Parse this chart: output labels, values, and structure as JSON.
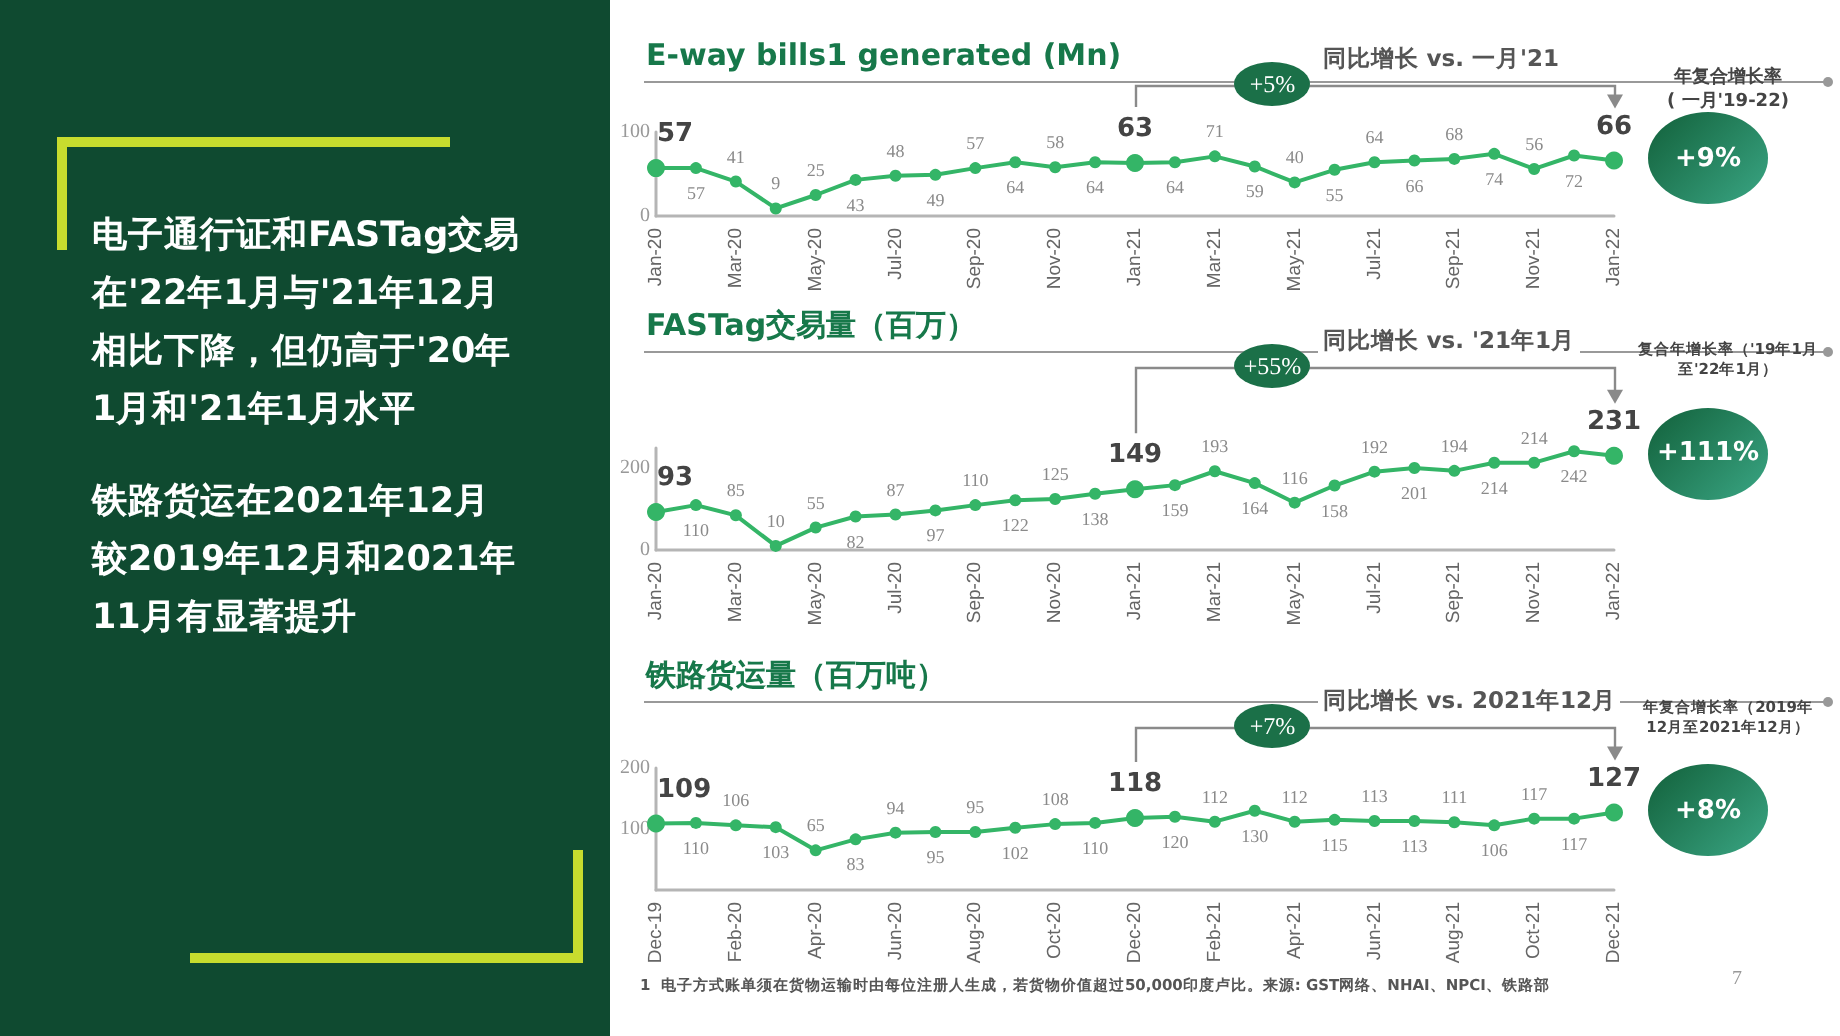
{
  "chart_data": [
    {
      "type": "other",
      "annotations": [
        "电子通行证和FASTag交易在'22年1月与'21年12月相比下降，但仍高于'20年1月和'21年1月水平",
        "铁路货运在2021年12月较2019年12月和2021年11月有显著提升"
      ]
    },
    {
      "type": "line",
      "title": "E-way bills1 generated (Mn)",
      "categories": [
        "Jan-20",
        null,
        "Mar-20",
        null,
        "May-20",
        null,
        "Jul-20",
        null,
        "Sep-20",
        null,
        "Nov-20",
        null,
        "Jan-21",
        null,
        "Mar-21",
        null,
        "May-21",
        null,
        "Jul-21",
        null,
        "Sep-21",
        null,
        "Nov-21",
        null,
        "Jan-22"
      ],
      "series": [
        {
          "color": "#34b567",
          "values": [
            57,
            57,
            41,
            9,
            25,
            43,
            48,
            49,
            57,
            64,
            58,
            64,
            63,
            64,
            71,
            59,
            40,
            55,
            64,
            66,
            68,
            74,
            56,
            72,
            66
          ]
        }
      ],
      "ylim": [
        0,
        100
      ],
      "yticks": [
        0,
        100
      ],
      "grid": false,
      "marker": "circle",
      "line_style": "solid",
      "data_labels": true,
      "annotations": [
        "+5%",
        "同比增长 vs. 一月'21",
        "年复合增长率\n( 一月'19-22)",
        "+9%"
      ]
    },
    {
      "type": "line",
      "title": "FASTag交易量（百万）",
      "categories": [
        "Jan-20",
        null,
        "Mar-20",
        null,
        "May-20",
        null,
        "Jul-20",
        null,
        "Sep-20",
        null,
        "Nov-20",
        null,
        "Jan-21",
        null,
        "Mar-21",
        null,
        "May-21",
        null,
        "Jul-21",
        null,
        "Sep-21",
        null,
        "Nov-21",
        null,
        "Jan-22"
      ],
      "series": [
        {
          "color": "#34b567",
          "values": [
            93,
            110,
            85,
            10,
            55,
            82,
            87,
            97,
            110,
            122,
            125,
            138,
            149,
            159,
            193,
            164,
            116,
            158,
            192,
            201,
            194,
            214,
            214,
            242,
            231
          ]
        }
      ],
      "ylim": [
        0,
        250
      ],
      "yticks": [
        0,
        200
      ],
      "grid": false,
      "marker": "circle",
      "line_style": "solid",
      "data_labels": true,
      "annotations": [
        "+55%",
        "同比增长 vs. '21年1月",
        "复合年增长率（'19年1月至'22年1月）",
        "+111%"
      ]
    },
    {
      "type": "line",
      "title": "铁路货运量（百万吨）",
      "categories": [
        "Dec-19",
        null,
        "Feb-20",
        null,
        "Apr-20",
        null,
        "Jun-20",
        null,
        "Aug-20",
        null,
        "Oct-20",
        null,
        "Dec-20",
        null,
        "Feb-21",
        null,
        "Apr-21",
        null,
        "Jun-21",
        null,
        "Aug-21",
        null,
        "Oct-21",
        null,
        "Dec-21"
      ],
      "series": [
        {
          "color": "#34b567",
          "values": [
            109,
            110,
            106,
            103,
            65,
            83,
            94,
            95,
            95,
            102,
            108,
            110,
            118,
            120,
            112,
            130,
            112,
            115,
            113,
            113,
            111,
            106,
            117,
            117,
            127
          ]
        }
      ],
      "ylim": [
        0,
        200
      ],
      "yticks": [
        100,
        200
      ],
      "grid": false,
      "marker": "circle",
      "line_style": "solid",
      "data_labels": true,
      "annotations": [
        "+7%",
        "同比增长 vs. 2021年12月",
        "年复合增长率（2019年12月至2021年12月）",
        "+8%",
        "1  电子方式账单须在货物运输时由每位注册人生成，若货物价值超过50,000印度卢比。来源: GST网络、NHAI、NPCI、铁路部",
        "7"
      ]
    }
  ]
}
